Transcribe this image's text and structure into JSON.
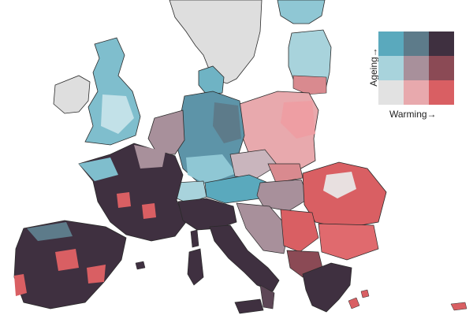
{
  "legend": {
    "y_label": "Ageing→",
    "x_label": "Warming→",
    "grid_colors": [
      [
        "#5aa9bd",
        "#5d7b8a",
        "#3f3040"
      ],
      [
        "#a8d3dc",
        "#a8909b",
        "#8b4a55"
      ],
      [
        "#e2e2e2",
        "#e8a9ad",
        "#d95f63"
      ]
    ]
  },
  "colors": {
    "background": "#ffffff",
    "non_data_land": "#dedede",
    "border": "#2a2a2a",
    "low_low": "#e2e2e2",
    "high_warming": "#d95f63",
    "high_ageing": "#5aa9bd",
    "high_high": "#3f3040"
  }
}
